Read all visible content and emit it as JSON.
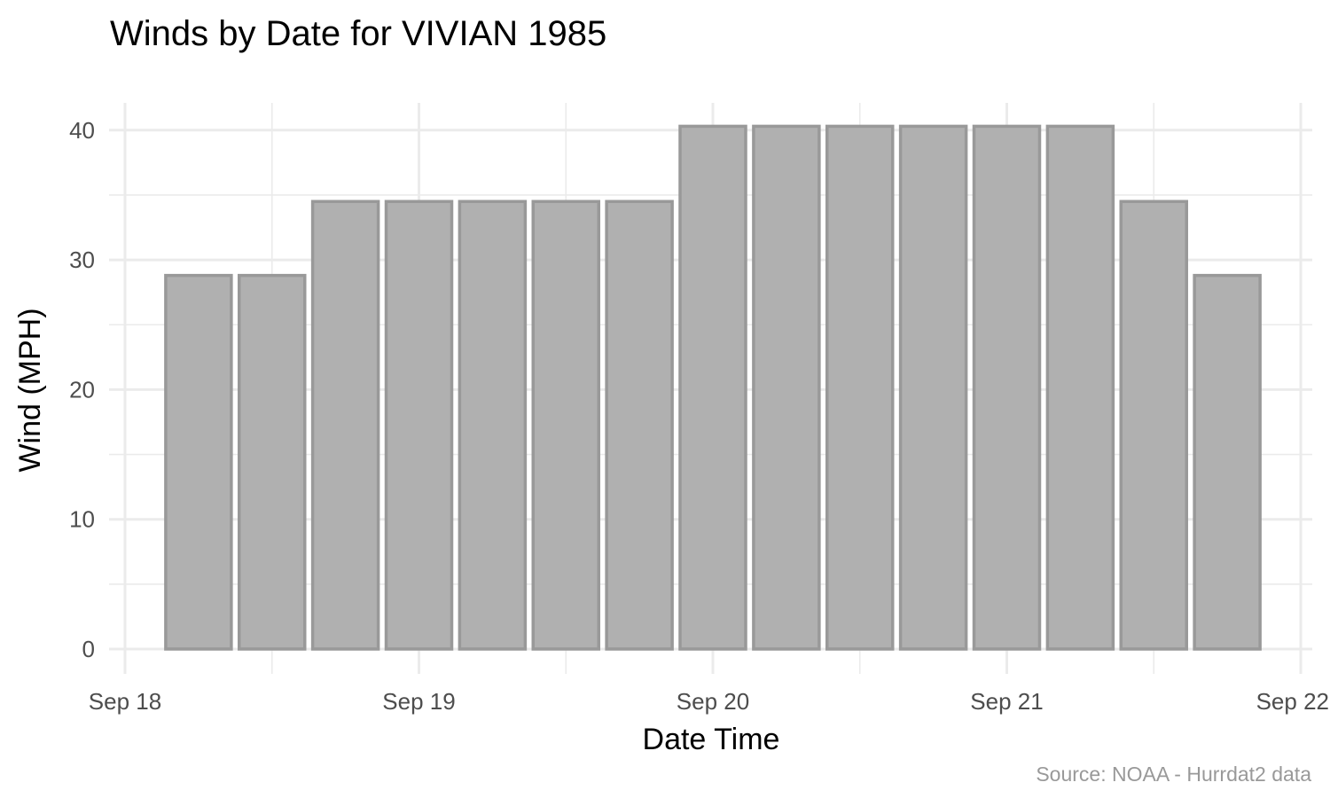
{
  "chart_data": {
    "type": "bar",
    "title": "Winds by Date for VIVIAN 1985",
    "xlabel": "Date Time",
    "ylabel": "Wind (MPH)",
    "caption": "Source: NOAA - Hurrdat2 data",
    "x_ticks": [
      {
        "date": "1985-09-18",
        "label": "Sep 18"
      },
      {
        "date": "1985-09-19",
        "label": "Sep 19"
      },
      {
        "date": "1985-09-20",
        "label": "Sep 20"
      },
      {
        "date": "1985-09-21",
        "label": "Sep 21"
      },
      {
        "date": "1985-09-22",
        "label": "Sep 22"
      }
    ],
    "x": [
      "1985-09-18 06:00",
      "1985-09-18 12:00",
      "1985-09-18 18:00",
      "1985-09-19 00:00",
      "1985-09-19 06:00",
      "1985-09-19 12:00",
      "1985-09-19 18:00",
      "1985-09-20 00:00",
      "1985-09-20 06:00",
      "1985-09-20 12:00",
      "1985-09-20 18:00",
      "1985-09-21 00:00",
      "1985-09-21 06:00",
      "1985-09-21 12:00",
      "1985-09-21 18:00"
    ],
    "values": [
      28.8,
      28.8,
      34.5,
      34.5,
      34.5,
      34.5,
      34.5,
      40.3,
      40.3,
      40.3,
      40.3,
      40.3,
      40.3,
      34.5,
      28.8
    ],
    "ylim": [
      0,
      40
    ],
    "y_ticks": [
      0,
      10,
      20,
      30,
      40
    ],
    "grid": true,
    "colors": {
      "bar_fill": "#b0b0b0",
      "bar_outline": "#999999",
      "grid": "#ebebeb"
    }
  }
}
